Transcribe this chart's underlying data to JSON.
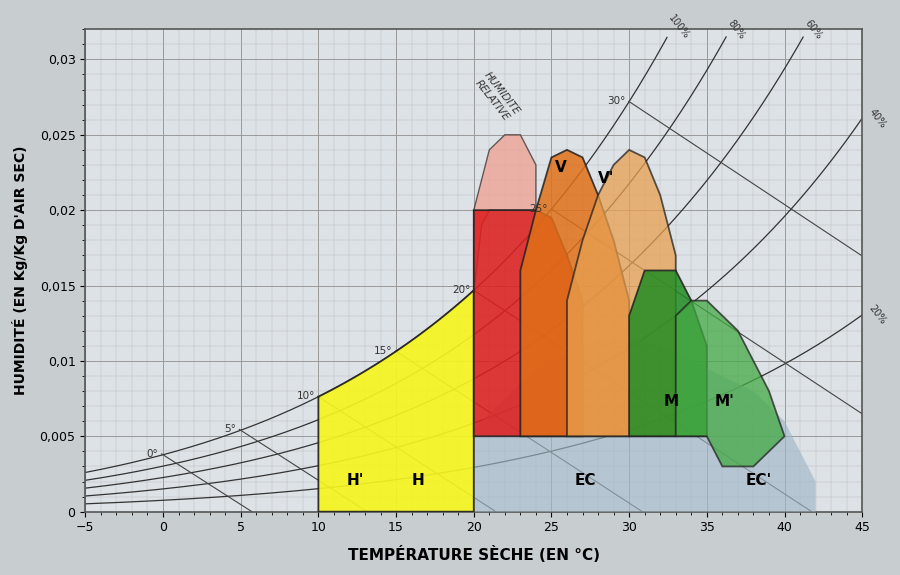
{
  "xlim": [
    -5,
    45
  ],
  "ylim": [
    0,
    0.032
  ],
  "xlabel": "TEMPÉRATURE SÈCHE (EN °C)",
  "ylabel": "HUMIDITÉ (EN Kg/Kg D'AIR SEC)",
  "fig_bg": "#c8cdd0",
  "plot_bg": "#dde2e6",
  "rh_values": [
    1.0,
    0.8,
    0.6,
    0.4,
    0.2
  ],
  "rh_labels": [
    "100%",
    "80%",
    "60%",
    "40%",
    "20%"
  ],
  "wb_temps": [
    0,
    5,
    10,
    15,
    20,
    25,
    30
  ],
  "wb_labels": [
    "0°",
    "5°",
    "10°",
    "15°",
    "20°",
    "25°",
    "30°"
  ]
}
